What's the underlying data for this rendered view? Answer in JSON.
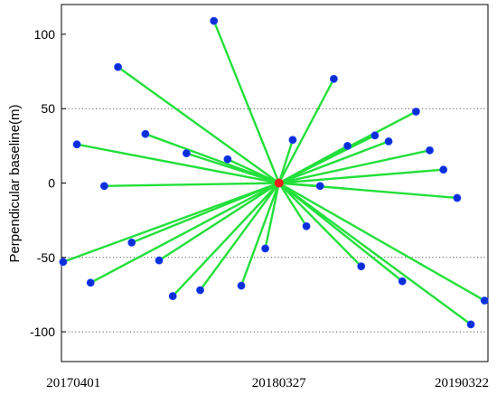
{
  "chart_data": {
    "type": "scatter",
    "ylabel": "Perpendicular baseline(m)",
    "xlabel": "",
    "x_tick_labels": [
      "20170401",
      "20180327",
      "20190322"
    ],
    "y_ticks": [
      100,
      50,
      0,
      -50,
      -100
    ],
    "ylim": [
      -120,
      120
    ],
    "grid": "dotted horizontal at y = 50, -50, -100",
    "master": {
      "x": "2018-03-27",
      "y": 0
    },
    "points": [
      {
        "x": "2017-03-14",
        "y": -53
      },
      {
        "x": "2017-04-07",
        "y": 26
      },
      {
        "x": "2017-05-01",
        "y": -67
      },
      {
        "x": "2017-05-25",
        "y": -2
      },
      {
        "x": "2017-06-18",
        "y": 78
      },
      {
        "x": "2017-07-12",
        "y": -40
      },
      {
        "x": "2017-08-05",
        "y": 33
      },
      {
        "x": "2017-08-29",
        "y": -52
      },
      {
        "x": "2017-09-22",
        "y": -76
      },
      {
        "x": "2017-10-16",
        "y": 20
      },
      {
        "x": "2017-11-09",
        "y": -72
      },
      {
        "x": "2017-12-03",
        "y": 109
      },
      {
        "x": "2017-12-27",
        "y": 16
      },
      {
        "x": "2018-01-20",
        "y": -69
      },
      {
        "x": "2018-03-03",
        "y": -44
      },
      {
        "x": "2018-04-20",
        "y": 29
      },
      {
        "x": "2018-05-14",
        "y": -29
      },
      {
        "x": "2018-06-07",
        "y": -2
      },
      {
        "x": "2018-07-01",
        "y": 70
      },
      {
        "x": "2018-07-25",
        "y": 25
      },
      {
        "x": "2018-08-18",
        "y": -56
      },
      {
        "x": "2018-09-11",
        "y": 32
      },
      {
        "x": "2018-10-05",
        "y": 28
      },
      {
        "x": "2018-10-29",
        "y": -66
      },
      {
        "x": "2018-11-22",
        "y": 48
      },
      {
        "x": "2018-12-16",
        "y": 22
      },
      {
        "x": "2019-01-09",
        "y": 9
      },
      {
        "x": "2019-02-02",
        "y": -10
      },
      {
        "x": "2019-02-26",
        "y": -95
      },
      {
        "x": "2019-03-22",
        "y": -79
      }
    ],
    "colors": {
      "lines": "#22e03a",
      "points": "#0a2fd6",
      "master": "#ee1c1c",
      "grid": "#555555"
    }
  }
}
